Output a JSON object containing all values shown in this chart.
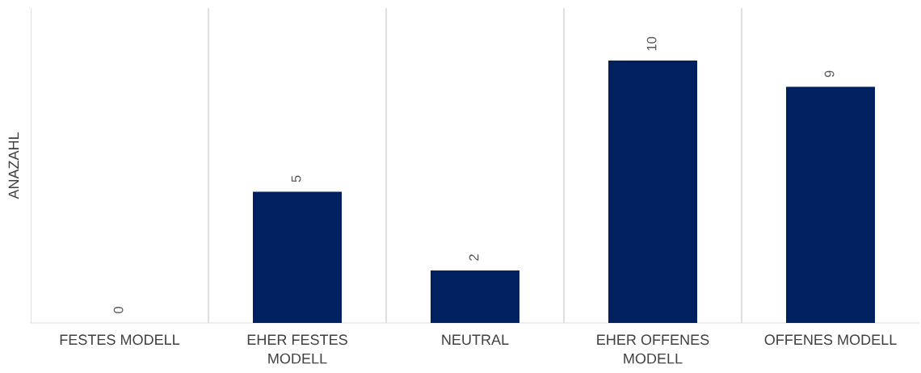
{
  "chart_data": {
    "type": "bar",
    "ylabel": "ANAZAHL",
    "categories": [
      "FESTES MODELL",
      "EHER FESTES MODELL",
      "NEUTRAL",
      "EHER OFFENES MODELL",
      "OFFENES MODELL"
    ],
    "values": [
      0,
      5,
      2,
      10,
      9
    ],
    "color": "#002060",
    "ylim": [
      0,
      12
    ],
    "tick_labels": "x",
    "data_labels": true,
    "grid": "x"
  }
}
